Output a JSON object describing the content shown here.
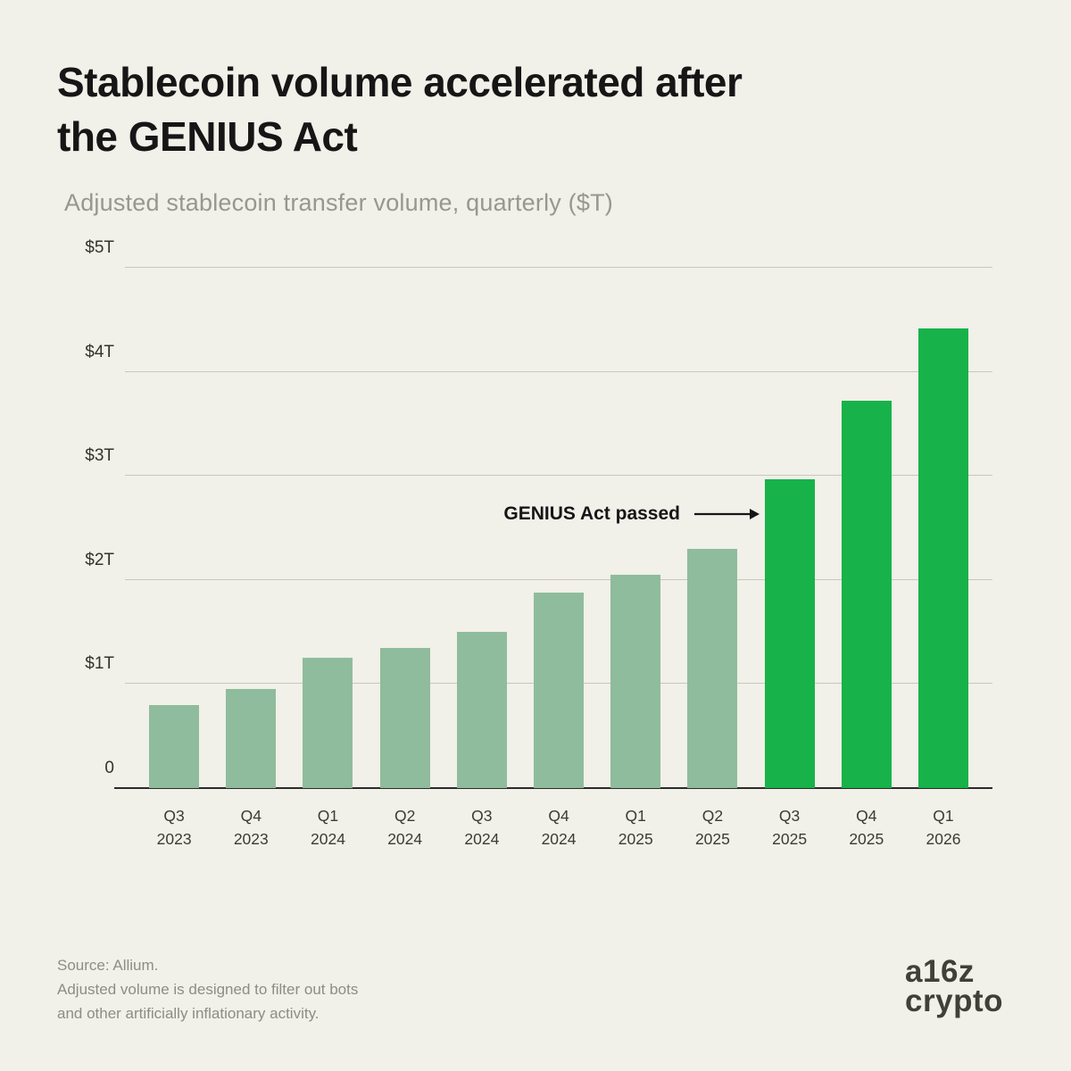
{
  "header": {
    "title_line1": "Stablecoin volume accelerated after",
    "title_line2": "the GENIUS Act",
    "subtitle": "Adjusted stablecoin transfer volume, quarterly ($T)"
  },
  "chart_data": {
    "type": "bar",
    "title": "Stablecoin volume accelerated after the GENIUS Act",
    "subtitle": "Adjusted stablecoin transfer volume, quarterly ($T)",
    "categories": [
      {
        "quarter": "Q3",
        "year": "2023"
      },
      {
        "quarter": "Q4",
        "year": "2023"
      },
      {
        "quarter": "Q1",
        "year": "2024"
      },
      {
        "quarter": "Q2",
        "year": "2024"
      },
      {
        "quarter": "Q3",
        "year": "2024"
      },
      {
        "quarter": "Q4",
        "year": "2024"
      },
      {
        "quarter": "Q1",
        "year": "2025"
      },
      {
        "quarter": "Q2",
        "year": "2025"
      },
      {
        "quarter": "Q3",
        "year": "2025"
      },
      {
        "quarter": "Q4",
        "year": "2025"
      },
      {
        "quarter": "Q1",
        "year": "2026"
      }
    ],
    "values": [
      0.8,
      0.95,
      1.25,
      1.35,
      1.5,
      1.88,
      2.05,
      2.3,
      2.97,
      3.72,
      4.42
    ],
    "ylim": [
      0,
      5
    ],
    "yticks": [
      {
        "value": 0,
        "label": "0"
      },
      {
        "value": 1,
        "label": "$1T"
      },
      {
        "value": 2,
        "label": "$2T"
      },
      {
        "value": 3,
        "label": "$3T"
      },
      {
        "value": 4,
        "label": "$4T"
      },
      {
        "value": 5,
        "label": "$5T"
      }
    ],
    "grid": true,
    "legend": "none",
    "colors": {
      "pre_genius": "#8fbc9d",
      "post_genius": "#17b24a"
    },
    "post_genius_start_index": 8,
    "annotation": {
      "text": "GENIUS Act passed",
      "points_to": "Q3 2025 bar"
    }
  },
  "footer": {
    "source": "Source: Allium.",
    "note_line1": "Adjusted volume is designed to filter out bots",
    "note_line2": "and other artificially inflationary activity.",
    "logo_line1": "a16z",
    "logo_line2": "crypto"
  }
}
